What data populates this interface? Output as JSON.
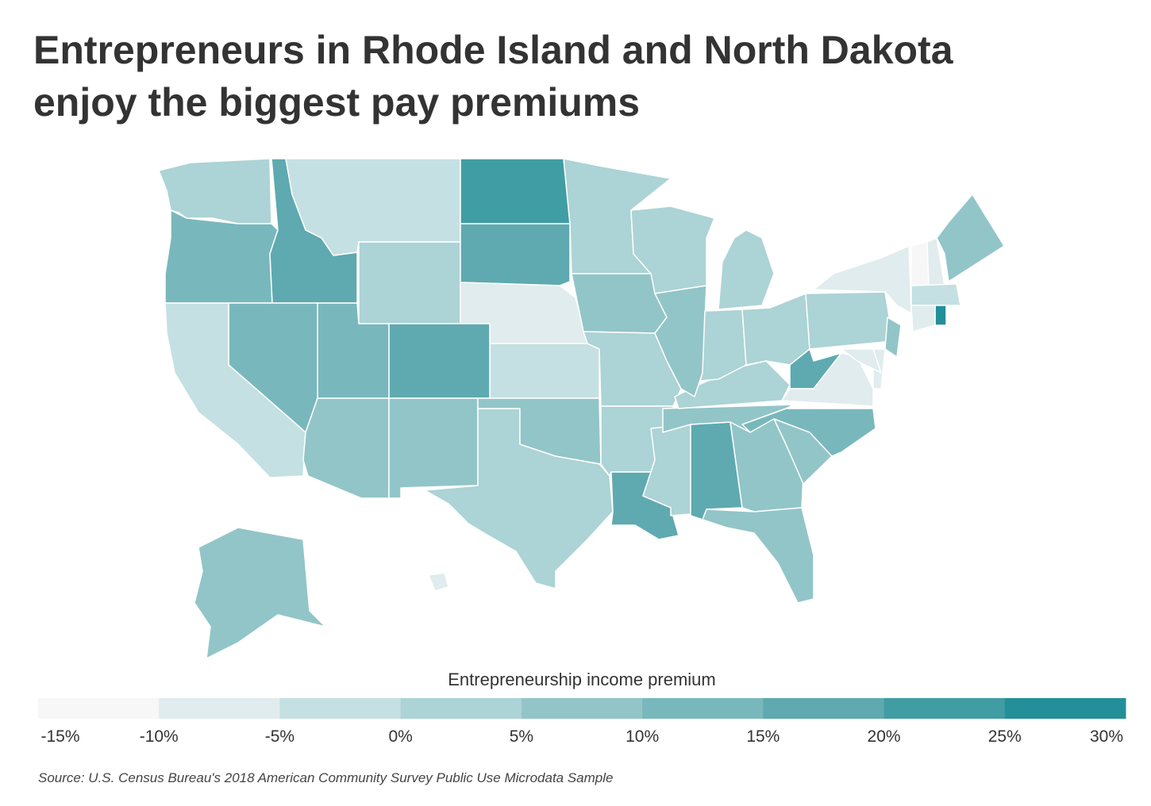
{
  "chart_data": {
    "type": "choropleth",
    "title": [
      "Entrepreneurs in Rhode Island and North Dakota",
      "enjoy the biggest pay premiums"
    ],
    "legend_title": "Entrepreneurship income premium",
    "ticks": [
      {
        "value": -15,
        "label": "-15%"
      },
      {
        "value": -10,
        "label": "-10%"
      },
      {
        "value": -5,
        "label": "-5%"
      },
      {
        "value": 0,
        "label": "0%"
      },
      {
        "value": 5,
        "label": "5%"
      },
      {
        "value": 10,
        "label": "10%"
      },
      {
        "value": 15,
        "label": "15%"
      },
      {
        "value": 20,
        "label": "20%"
      },
      {
        "value": 25,
        "label": "25%"
      },
      {
        "value": 30,
        "label": "30%"
      }
    ],
    "colors": [
      "#f7f7f7",
      "#e0eced",
      "#c5e0e2",
      "#acd3d5",
      "#92c5c8",
      "#78b8bc",
      "#5eaab0",
      "#409da4",
      "#238f98"
    ],
    "values": [
      2.5,
      12.5,
      17.5,
      -2.5,
      2.5,
      22.5,
      17.5,
      -7.5,
      -2.5,
      17.5,
      12.5,
      12.5,
      -2.5,
      7.5,
      7.5,
      2.5,
      7.5,
      2.5,
      7.5,
      2.5,
      2.5,
      17.5,
      2.5,
      17.5,
      7.5,
      7.5,
      7.5,
      12.5,
      7.5,
      2.5,
      2.5,
      7.5,
      2.5,
      2.5,
      2.5,
      17.5,
      -7.5,
      2.5,
      -7.5,
      -12.5,
      -7.5,
      7.5,
      -2.5,
      27.5,
      -7.5,
      7.5,
      -7.5,
      -7.5,
      7.5,
      -7.5
    ],
    "source": "Source: U.S. Census Bureau's 2018 American Community Survey Public Use Microdata Sample"
  }
}
